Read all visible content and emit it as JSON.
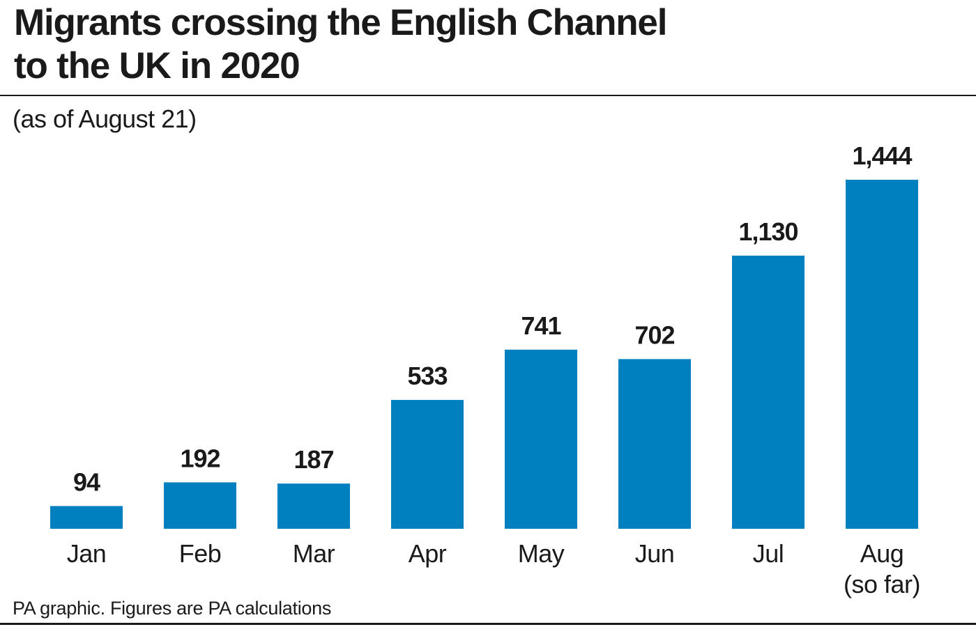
{
  "header": {
    "title_line1": "Migrants crossing the English Channel",
    "title_line2": "to the UK in 2020",
    "subtitle": "(as of August 21)"
  },
  "footer": {
    "source": "PA graphic. Figures are PA calculations"
  },
  "colors": {
    "bar": "#0080be",
    "text": "#1a1a1a"
  },
  "chart_data": {
    "type": "bar",
    "title": "Migrants crossing the English Channel to the UK in 2020",
    "subtitle": "(as of August 21)",
    "categories": [
      [
        "Jan"
      ],
      [
        "Feb"
      ],
      [
        "Mar"
      ],
      [
        "Apr"
      ],
      [
        "May"
      ],
      [
        "Jun"
      ],
      [
        "Jul"
      ],
      [
        "Aug",
        "(so far)"
      ]
    ],
    "values": [
      94,
      192,
      187,
      533,
      741,
      702,
      1130,
      1444
    ],
    "value_labels": [
      "94",
      "192",
      "187",
      "533",
      "741",
      "702",
      "1,130",
      "1,444"
    ],
    "xlabel": "",
    "ylabel": "",
    "ylim": [
      0,
      1444
    ],
    "grid": false,
    "legend": "none"
  }
}
